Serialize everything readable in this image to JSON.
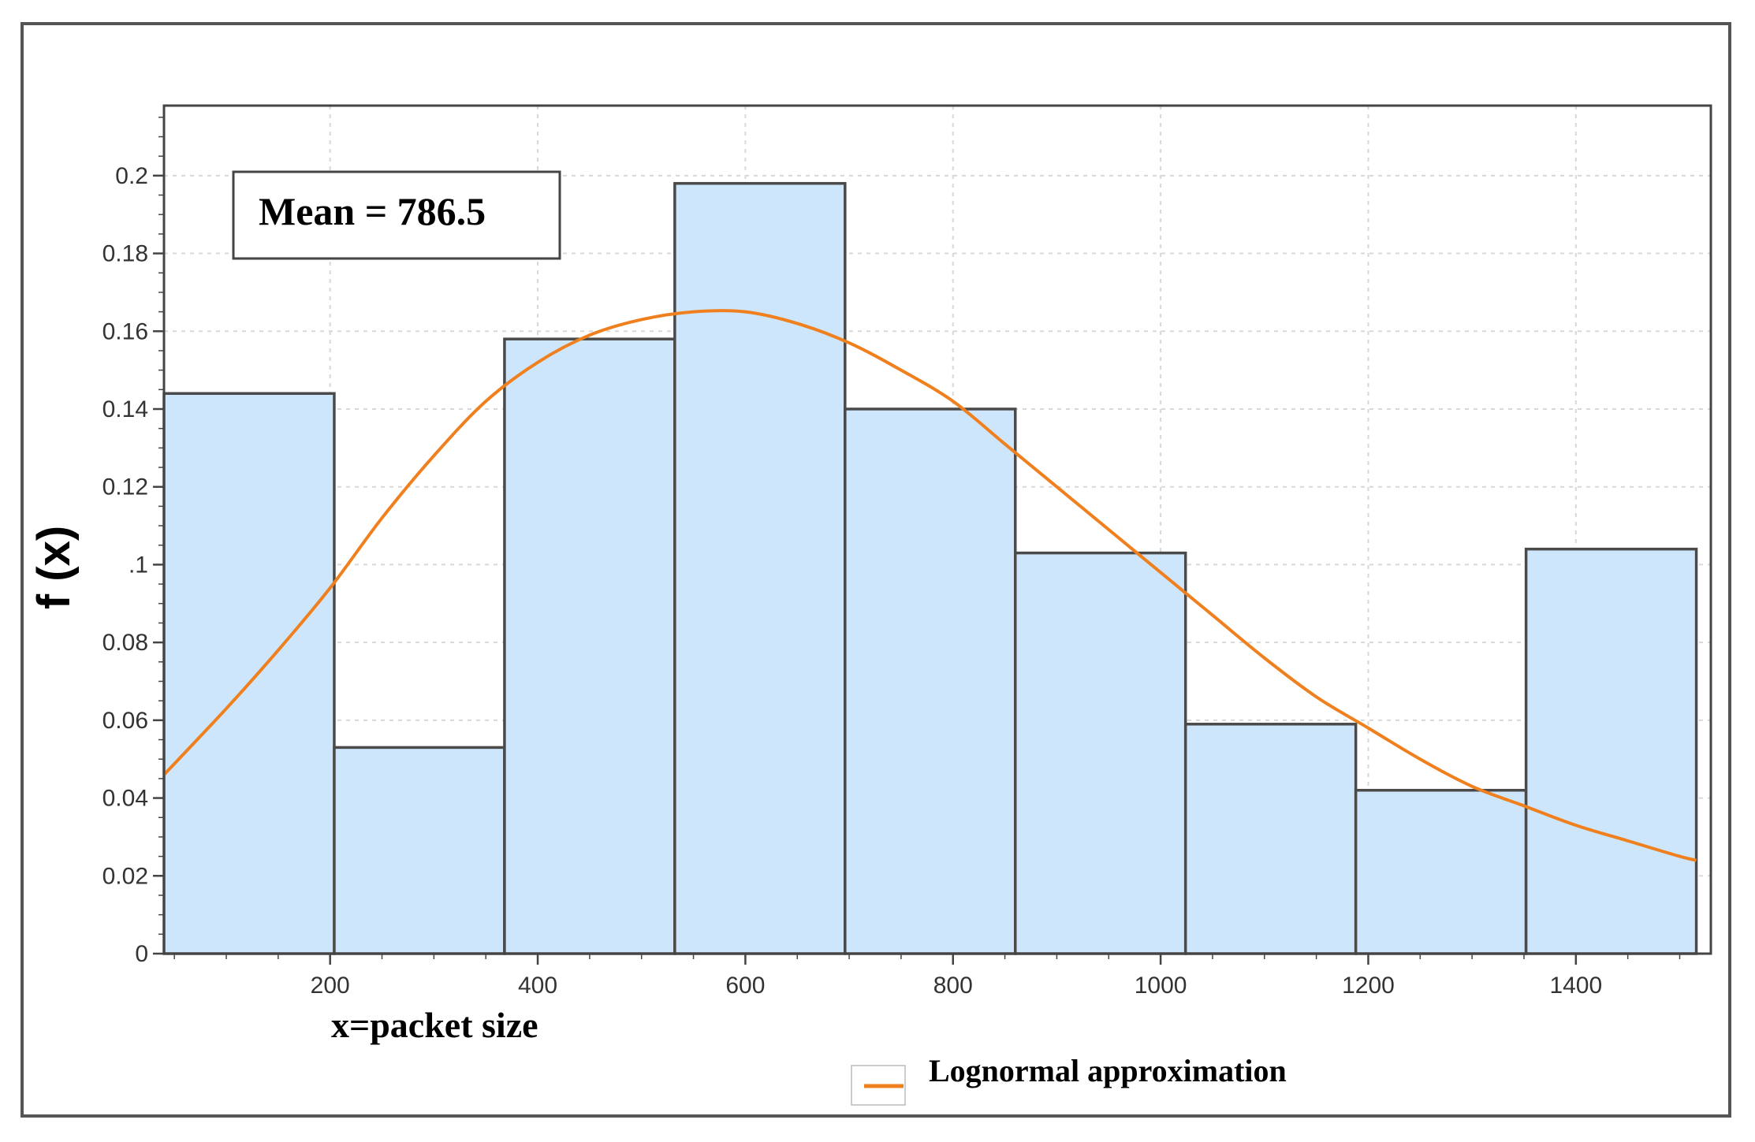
{
  "chart_data": {
    "type": "bar",
    "subtype": "histogram",
    "bins": [
      {
        "x0": 40,
        "x1": 204,
        "value": 0.144
      },
      {
        "x0": 204,
        "x1": 368,
        "value": 0.053
      },
      {
        "x0": 368,
        "x1": 532,
        "value": 0.158
      },
      {
        "x0": 532,
        "x1": 696,
        "value": 0.198
      },
      {
        "x0": 696,
        "x1": 860,
        "value": 0.14
      },
      {
        "x0": 860,
        "x1": 1024,
        "value": 0.103
      },
      {
        "x0": 1024,
        "x1": 1188,
        "value": 0.059
      },
      {
        "x0": 1188,
        "x1": 1352,
        "value": 0.042
      },
      {
        "x0": 1352,
        "x1": 1516,
        "value": 0.104
      }
    ],
    "series": [
      {
        "name": "Lognormal approximation",
        "type": "line",
        "color": "#f07f1e",
        "x": [
          40,
          100,
          150,
          200,
          250,
          300,
          350,
          400,
          450,
          500,
          550,
          600,
          650,
          700,
          750,
          800,
          850,
          900,
          950,
          1000,
          1050,
          1100,
          1150,
          1200,
          1250,
          1300,
          1350,
          1400,
          1450,
          1500,
          1516
        ],
        "y": [
          0.046,
          0.063,
          0.078,
          0.094,
          0.112,
          0.128,
          0.142,
          0.152,
          0.159,
          0.163,
          0.165,
          0.165,
          0.162,
          0.157,
          0.15,
          0.142,
          0.131,
          0.12,
          0.109,
          0.098,
          0.087,
          0.076,
          0.066,
          0.058,
          0.05,
          0.043,
          0.038,
          0.033,
          0.029,
          0.025,
          0.024
        ]
      }
    ],
    "annotation": "Mean = 786.5",
    "xlabel": "x=packet size",
    "ylabel": "f (x)",
    "xlim": [
      40,
      1530
    ],
    "ylim": [
      0,
      0.218
    ],
    "xticks": [
      200,
      400,
      600,
      800,
      1000,
      1200,
      1400
    ],
    "xtick_labels": [
      "200",
      "400",
      "600",
      "800",
      "1000",
      "1200",
      "1400"
    ],
    "yticks": [
      0,
      0.02,
      0.04,
      0.06,
      0.08,
      0.1,
      0.12,
      0.14,
      0.16,
      0.18,
      0.2
    ],
    "ytick_labels": [
      "0",
      "0.02",
      "0.04",
      "0.06",
      "0.08",
      ".1",
      "0.12",
      "0.14",
      "0.16",
      "0.18",
      "0.2"
    ],
    "grid": true,
    "legend": {
      "entries": [
        "Lognormal approximation"
      ],
      "position": "bottom-center"
    },
    "colors": {
      "bar_fill": "#cde6fb",
      "bar_stroke": "#4a4a4a",
      "curve": "#f07f1e",
      "grid": "#d8d8d8"
    }
  }
}
